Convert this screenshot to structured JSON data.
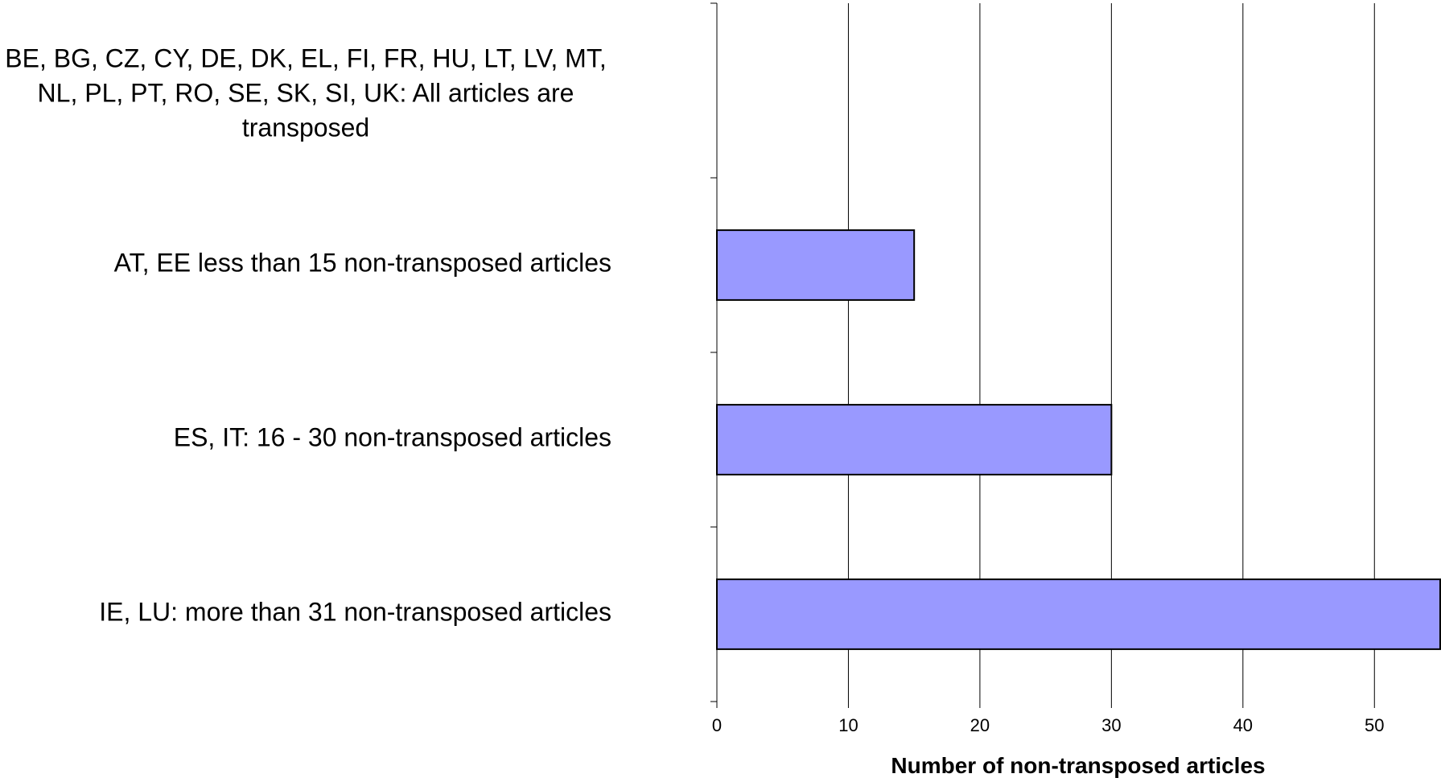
{
  "chart_data": {
    "type": "bar",
    "orientation": "horizontal",
    "categories": [
      "BE, BG, CZ, CY, DE, DK, EL, FI, FR, HU, LT, LV, MT, NL, PL, PT, RO, SE, SK, SI, UK: All articles are transposed",
      "AT, EE less than 15 non-transposed articles",
      "ES, IT: 16 - 30 non-transposed articles",
      "IE, LU: more than 31 non-transposed articles"
    ],
    "category_lines": [
      [
        "BE, BG, CZ, CY, DE, DK, EL, FI, FR, HU, LT, LV, MT,",
        "NL, PL, PT, RO, SE, SK, SI, UK: All articles are",
        "transposed"
      ],
      [
        "AT, EE less than 15 non-transposed articles"
      ],
      [
        "ES, IT: 16 - 30 non-transposed articles"
      ],
      [
        "IE, LU: more than 31 non-transposed articles"
      ]
    ],
    "values": [
      0,
      15,
      30,
      55
    ],
    "xlabel": "Number of non-transposed articles",
    "ylabel": "",
    "xlim": [
      0,
      55
    ],
    "xticks": [
      0,
      10,
      20,
      30,
      40,
      50
    ],
    "grid": "vertical",
    "legend": "none",
    "bar_color": "#9999ff",
    "bar_edge_color": "#000000"
  }
}
